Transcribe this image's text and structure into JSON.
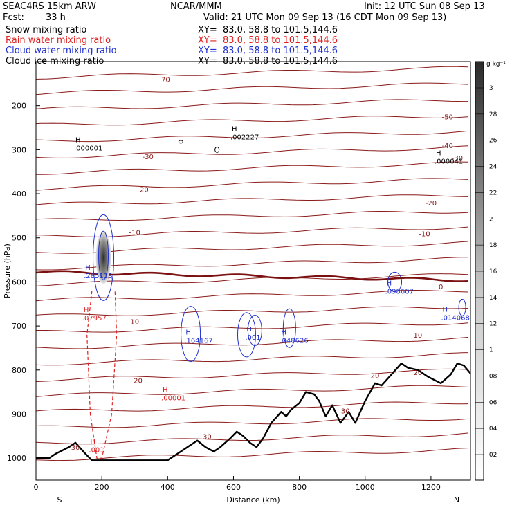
{
  "header": {
    "model": "SEAC4RS 15km ARW",
    "org": "NCAR/MMM",
    "init": "Init: 12 UTC Sun 08 Sep 13",
    "fcst_label": "Fcst:",
    "fcst_value": "33 h",
    "valid": "Valid: 21 UTC Mon 09 Sep 13 (16 CDT Mon 09 Sep 13)",
    "fields": [
      {
        "name": "Snow mixing ratio",
        "xy": "XY=  83.0, 58.8 to 101.5,144.6",
        "color": "#000000"
      },
      {
        "name": "Rain water mixing ratio",
        "xy": "XY=  83.0, 58.8 to 101.5,144.6",
        "color": "#e02020"
      },
      {
        "name": "Cloud water mixing ratio",
        "xy": "XY=  83.0, 58.8 to 101.5,144.6",
        "color": "#2030d0"
      },
      {
        "name": "Cloud ice mixing ratio",
        "xy": "XY=  83.0, 58.8 to 101.5,144.6",
        "color": "#000000"
      }
    ]
  },
  "chart_data": {
    "type": "cross-section contour",
    "xlabel": "Distance (km)",
    "ylabel": "Pressure (hPa)",
    "xlim": [
      0,
      1320
    ],
    "ylim": [
      1050,
      100
    ],
    "x_ticks": [
      0,
      200,
      400,
      600,
      800,
      1000,
      1200
    ],
    "y_ticks": [
      200,
      300,
      400,
      500,
      600,
      700,
      800,
      900,
      1000
    ],
    "endpoints": {
      "left": "S",
      "right": "N"
    },
    "colorbar": {
      "unit": "g kg⁻¹",
      "ticks": [
        ".3",
        ".28",
        ".26",
        ".24",
        ".22",
        ".2",
        ".18",
        ".16",
        ".14",
        ".12",
        ".1",
        ".08",
        ".06",
        ".04",
        ".02"
      ]
    },
    "temperature_contours": {
      "color": "#8b1a1a",
      "labels": [
        {
          "text": "-70",
          "x": 390,
          "p": 140
        },
        {
          "text": "-50",
          "x": 1250,
          "p": 225
        },
        {
          "text": "-40",
          "x": 1250,
          "p": 290
        },
        {
          "text": "-30",
          "x": 340,
          "p": 315
        },
        {
          "text": "-30",
          "x": 1280,
          "p": 318
        },
        {
          "text": "-20",
          "x": 325,
          "p": 390
        },
        {
          "text": "-20",
          "x": 1200,
          "p": 420
        },
        {
          "text": "-10",
          "x": 300,
          "p": 487
        },
        {
          "text": "-10",
          "x": 1180,
          "p": 490
        },
        {
          "text": "0",
          "x": 225,
          "p": 590
        },
        {
          "text": "0",
          "x": 1230,
          "p": 610
        },
        {
          "text": "10",
          "x": 300,
          "p": 690
        },
        {
          "text": "10",
          "x": 1160,
          "p": 720
        },
        {
          "text": "20",
          "x": 310,
          "p": 823
        },
        {
          "text": "20",
          "x": 1030,
          "p": 812
        },
        {
          "text": "20",
          "x": 1160,
          "p": 805
        },
        {
          "text": "30",
          "x": 120,
          "p": 975
        },
        {
          "text": "30",
          "x": 520,
          "p": 950
        },
        {
          "text": "30",
          "x": 940,
          "p": 892
        }
      ]
    },
    "extrema": [
      {
        "text": ".000001",
        "x": 145,
        "p": 300,
        "color": "#000000"
      },
      {
        "text": ".002227",
        "x": 620,
        "p": 275,
        "color": "#000000"
      },
      {
        "text": ".000041",
        "x": 1240,
        "p": 330,
        "color": "#000000"
      },
      {
        "text": ".285113",
        "x": 175,
        "p": 590,
        "color": "#2030d0"
      },
      {
        "text": ".07957",
        "x": 170,
        "p": 686,
        "color": "#e02020"
      },
      {
        "text": ".164167",
        "x": 480,
        "p": 737,
        "color": "#2030d0"
      },
      {
        "text": ".001",
        "x": 665,
        "p": 730,
        "color": "#2030d0"
      },
      {
        "text": ".048626",
        "x": 770,
        "p": 737,
        "color": "#2030d0"
      },
      {
        "text": ".098607",
        "x": 1090,
        "p": 625,
        "color": "#2030d0"
      },
      {
        "text": ".014068",
        "x": 1260,
        "p": 685,
        "color": "#2030d0"
      },
      {
        "text": ".00001",
        "x": 410,
        "p": 867,
        "color": "#e02020"
      },
      {
        "text": ".001",
        "x": 190,
        "p": 985,
        "color": "#e02020"
      }
    ],
    "terrain": [
      [
        0,
        1000
      ],
      [
        40,
        1000
      ],
      [
        60,
        990
      ],
      [
        100,
        975
      ],
      [
        120,
        965
      ],
      [
        150,
        990
      ],
      [
        170,
        1005
      ],
      [
        400,
        1005
      ],
      [
        430,
        990
      ],
      [
        460,
        975
      ],
      [
        490,
        960
      ],
      [
        515,
        975
      ],
      [
        540,
        985
      ],
      [
        560,
        975
      ],
      [
        590,
        955
      ],
      [
        610,
        940
      ],
      [
        630,
        950
      ],
      [
        650,
        965
      ],
      [
        670,
        975
      ],
      [
        690,
        955
      ],
      [
        715,
        920
      ],
      [
        745,
        895
      ],
      [
        760,
        905
      ],
      [
        775,
        890
      ],
      [
        800,
        875
      ],
      [
        820,
        850
      ],
      [
        845,
        855
      ],
      [
        860,
        870
      ],
      [
        880,
        905
      ],
      [
        900,
        880
      ],
      [
        925,
        920
      ],
      [
        950,
        895
      ],
      [
        970,
        920
      ],
      [
        1000,
        870
      ],
      [
        1030,
        830
      ],
      [
        1050,
        835
      ],
      [
        1080,
        810
      ],
      [
        1110,
        785
      ],
      [
        1130,
        795
      ],
      [
        1160,
        800
      ],
      [
        1190,
        815
      ],
      [
        1230,
        830
      ],
      [
        1260,
        810
      ],
      [
        1280,
        785
      ],
      [
        1300,
        790
      ],
      [
        1320,
        808
      ]
    ]
  }
}
